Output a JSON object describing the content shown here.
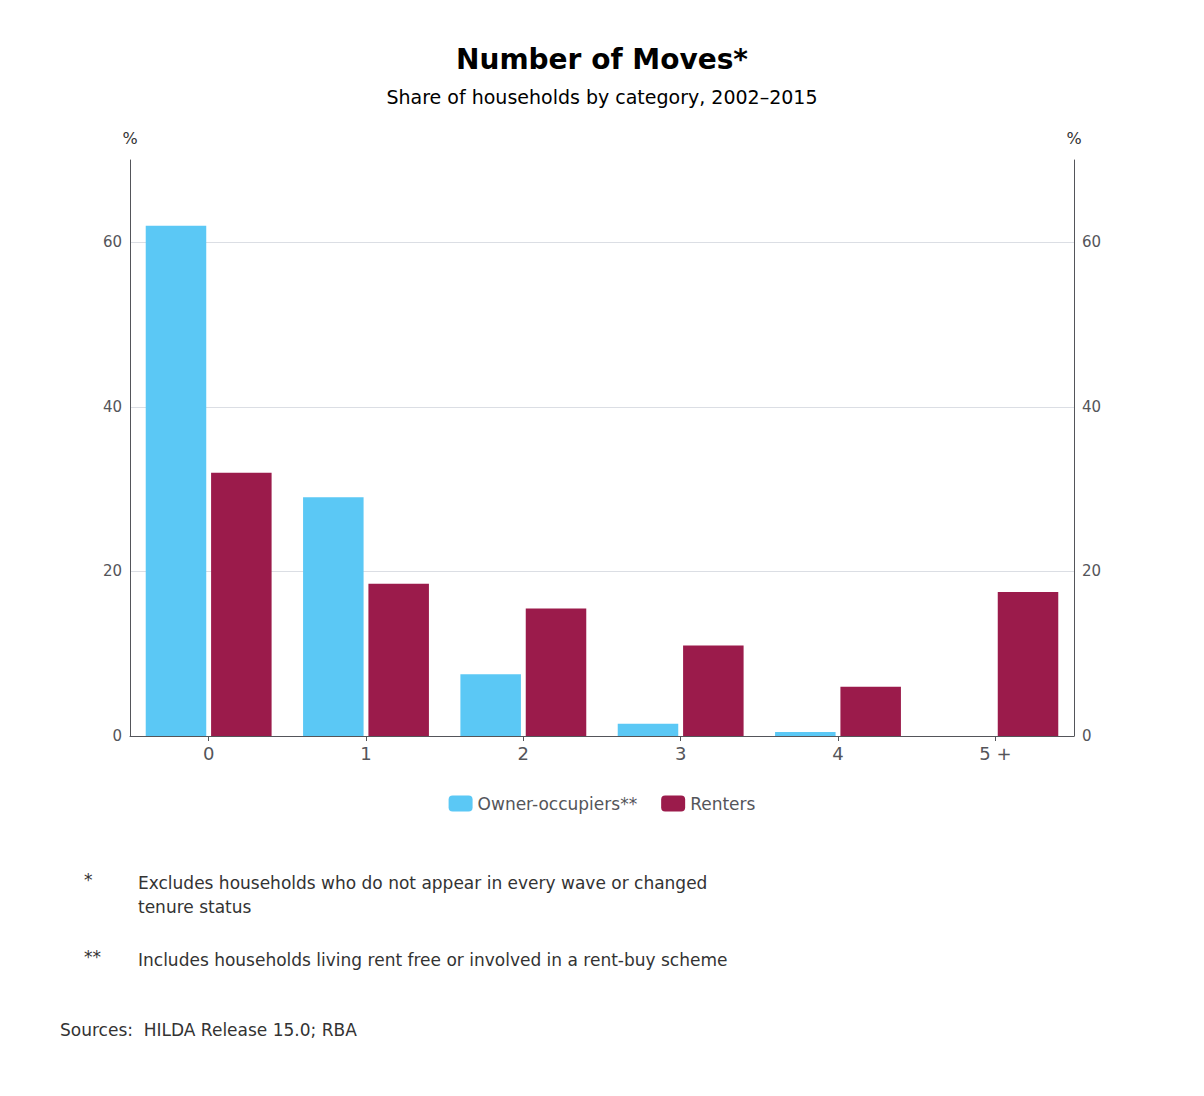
{
  "chart_data": {
    "type": "bar",
    "title": "Number of Moves*",
    "subtitle": "Share of households by category, 2002–2015",
    "categories": [
      "0",
      "1",
      "2",
      "3",
      "4",
      "5 +"
    ],
    "series": [
      {
        "name": "Owner-occupiers**",
        "color": "#5BC8F5",
        "values": [
          62,
          29,
          7.5,
          1.5,
          0.5,
          0
        ]
      },
      {
        "name": "Renters",
        "color": "#9B1B4B",
        "values": [
          32,
          18.5,
          15.5,
          11,
          6,
          17.5
        ]
      }
    ],
    "ylabel": "%",
    "y2label": "%",
    "ylim": [
      0,
      70
    ],
    "yticks": [
      0,
      20,
      40,
      60
    ],
    "y2lim": [
      0,
      70
    ],
    "y2ticks": [
      0,
      20,
      40,
      60
    ],
    "grid": true,
    "legend": "bottom",
    "footnotes": [
      {
        "symbol": "*",
        "text": "Excludes households who do not appear in every wave or changed\ntenure status"
      },
      {
        "symbol": "**",
        "text": "Includes households living rent free or involved in a rent-buy scheme"
      }
    ],
    "source": "Sources:  HILDA Release 15.0; RBA"
  }
}
